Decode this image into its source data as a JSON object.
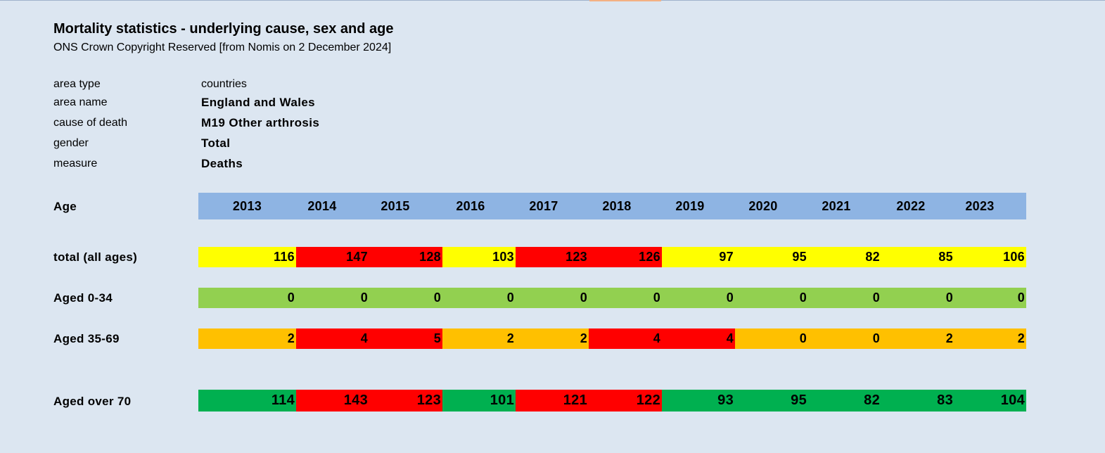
{
  "title": "Mortality statistics - underlying cause, sex and age",
  "subtitle": "ONS Crown Copyright Reserved [from Nomis on 2 December 2024]",
  "meta": [
    {
      "label": "area type",
      "value": "countries",
      "bold": false
    },
    {
      "label": "area name",
      "value": "England and Wales",
      "bold": true
    },
    {
      "label": "cause of death",
      "value": "M19 Other arthrosis",
      "bold": true
    },
    {
      "label": "gender",
      "value": "Total",
      "bold": true
    },
    {
      "label": "measure",
      "value": "Deaths",
      "bold": true
    }
  ],
  "header": {
    "label": "Age",
    "years": [
      "2013",
      "2014",
      "2015",
      "2016",
      "2017",
      "2018",
      "2019",
      "2020",
      "2021",
      "2022",
      "2023"
    ],
    "color": "#8eb4e3"
  },
  "rows": [
    {
      "label": "total (all ages)",
      "values": [
        "116",
        "147",
        "128",
        "103",
        "123",
        "126",
        "97",
        "95",
        "82",
        "85",
        "106"
      ],
      "colors": [
        "#ffff00",
        "#ff0000",
        "#ff0000",
        "#ffff00",
        "#ff0000",
        "#ff0000",
        "#ffff00",
        "#ffff00",
        "#ffff00",
        "#ffff00",
        "#ffff00"
      ]
    },
    {
      "label": "Aged 0-34",
      "values": [
        "0",
        "0",
        "0",
        "0",
        "0",
        "0",
        "0",
        "0",
        "0",
        "0",
        "0"
      ],
      "colors": [
        "#92d050",
        "#92d050",
        "#92d050",
        "#92d050",
        "#92d050",
        "#92d050",
        "#92d050",
        "#92d050",
        "#92d050",
        "#92d050",
        "#92d050"
      ]
    },
    {
      "label": "Aged 35-69",
      "values": [
        "2",
        "4",
        "5",
        "2",
        "2",
        "4",
        "4",
        "0",
        "0",
        "2",
        "2"
      ],
      "colors": [
        "#ffc000",
        "#ff0000",
        "#ff0000",
        "#ffc000",
        "#ffc000",
        "#ff0000",
        "#ff0000",
        "#ffc000",
        "#ffc000",
        "#ffc000",
        "#ffc000"
      ]
    },
    {
      "label": "Aged over 70",
      "values": [
        "114",
        "143",
        "123",
        "101",
        "121",
        "122",
        "93",
        "95",
        "82",
        "83",
        "104"
      ],
      "colors": [
        "#00b050",
        "#ff0000",
        "#ff0000",
        "#00b050",
        "#ff0000",
        "#ff0000",
        "#00b050",
        "#00b050",
        "#00b050",
        "#00b050",
        "#00b050"
      ]
    }
  ]
}
